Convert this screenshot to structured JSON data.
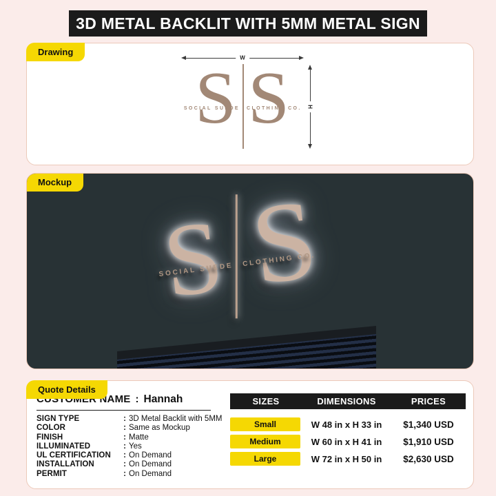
{
  "header": {
    "title": "3D METAL BACKLIT WITH 5MM METAL SIGN"
  },
  "sections": {
    "drawing_label": "Drawing",
    "mockup_label": "Mockup",
    "quote_label": "Quote Details"
  },
  "drawing": {
    "width_label": "W",
    "height_label": "H"
  },
  "logo": {
    "monogram_left": "S",
    "monogram_right": "S",
    "tagline_left": "SOCIAL SUEDE",
    "tagline_right": "CLOTHING CO."
  },
  "quote": {
    "customer_label": "CUSTOMER NAME",
    "colon": ":",
    "customer_name": "Hannah",
    "rows": [
      {
        "label": "SIGN TYPE",
        "value": "3D Metal Backlit with 5MM"
      },
      {
        "label": "COLOR",
        "value": "Same as Mockup"
      },
      {
        "label": "FINISH",
        "value": "Matte"
      },
      {
        "label": "ILLUMINATED",
        "value": "Yes"
      },
      {
        "label": "UL CERTIFICATION",
        "value": "On Demand"
      },
      {
        "label": "INSTALLATION",
        "value": "On Demand"
      },
      {
        "label": "PERMIT",
        "value": "On Demand"
      }
    ]
  },
  "pricing": {
    "headers": [
      "SIZES",
      "DIMENSIONS",
      "PRICES"
    ],
    "rows": [
      {
        "size": "Small",
        "dimensions": "W 48 in x H 33 in",
        "price": "$1,340 USD"
      },
      {
        "size": "Medium",
        "dimensions": "W 60 in x H 41 in",
        "price": "$1,910 USD"
      },
      {
        "size": "Large",
        "dimensions": "W 72 in x H 50 in",
        "price": "$2,630 USD"
      }
    ]
  },
  "colors": {
    "accent_yellow": "#F5D803",
    "bar_black": "#1B1B1B",
    "page_pink": "#FBECEA",
    "mockup_background": "#283235",
    "logo_taupe": "#A28876"
  }
}
